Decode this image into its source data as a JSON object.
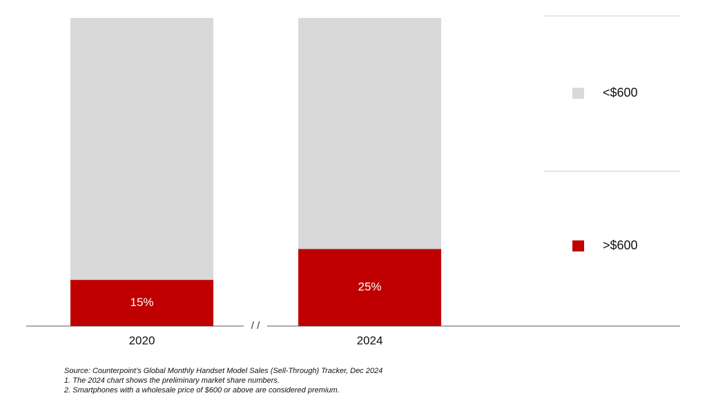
{
  "chart_data": {
    "type": "bar",
    "stacked": true,
    "categories": [
      "2020",
      "2024"
    ],
    "series": [
      {
        "name": ">$600",
        "color": "#c00000",
        "values": [
          15,
          25
        ],
        "value_labels": [
          "15%",
          "25%"
        ]
      },
      {
        "name": "<$600",
        "color": "#d9d9d9",
        "values": [
          85,
          75
        ]
      }
    ],
    "legend": "right",
    "axis_break": "/ /",
    "notes": [
      "Source: Counterpoint’s Global Monthly Handset Model Sales (Sell-Through) Tracker, Dec 2024",
      "1. The 2024 chart shows the preliminary market share numbers.",
      "2. Smartphones with a wholesale price of $600 or above are considered premium."
    ]
  }
}
